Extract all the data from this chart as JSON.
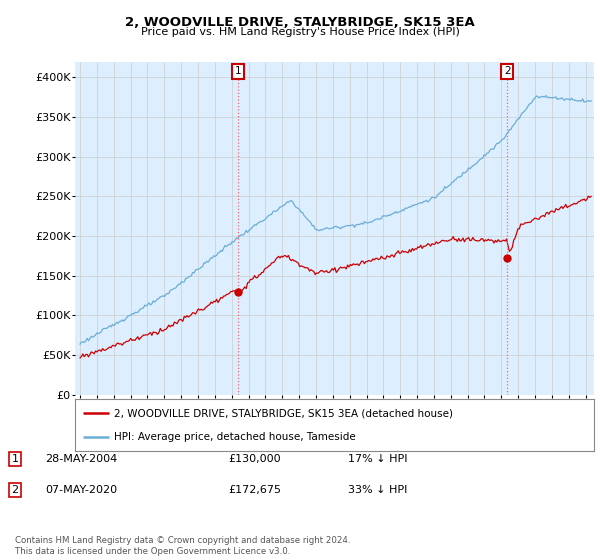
{
  "title": "2, WOODVILLE DRIVE, STALYBRIDGE, SK15 3EA",
  "subtitle": "Price paid vs. HM Land Registry's House Price Index (HPI)",
  "ylabel_ticks": [
    "£0",
    "£50K",
    "£100K",
    "£150K",
    "£200K",
    "£250K",
    "£300K",
    "£350K",
    "£400K"
  ],
  "ytick_vals": [
    0,
    50000,
    100000,
    150000,
    200000,
    250000,
    300000,
    350000,
    400000
  ],
  "ylim": [
    0,
    420000
  ],
  "xlim_start": 1994.7,
  "xlim_end": 2025.5,
  "hpi_color": "#6baed6",
  "price_color": "#cc0000",
  "bg_color": "#ddeeff",
  "marker1_date": 2004.38,
  "marker1_price": 130000,
  "marker2_date": 2020.35,
  "marker2_price": 172675,
  "legend_line1": "2, WOODVILLE DRIVE, STALYBRIDGE, SK15 3EA (detached house)",
  "legend_line2": "HPI: Average price, detached house, Tameside",
  "footer": "Contains HM Land Registry data © Crown copyright and database right 2024.\nThis data is licensed under the Open Government Licence v3.0.",
  "background_color": "#ffffff",
  "grid_color": "#cccccc"
}
